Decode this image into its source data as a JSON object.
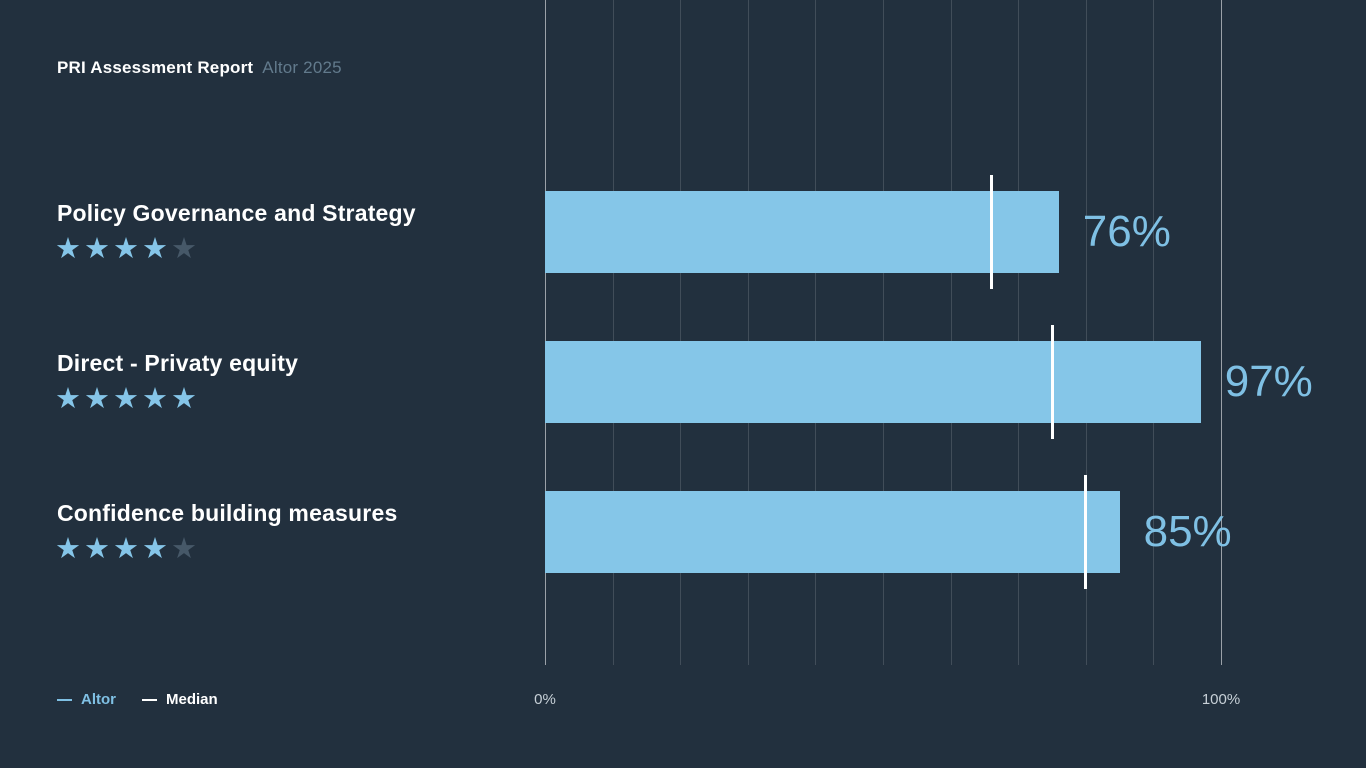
{
  "header": {
    "title": "PRI Assessment Report",
    "subtitle": "Altor 2025"
  },
  "chart_data": {
    "type": "bar",
    "orientation": "horizontal",
    "title": "PRI Assessment Report",
    "subtitle": "Altor 2025",
    "categories": [
      "Policy Governance and Strategy",
      "Direct - Privaty equity",
      "Confidence building measures"
    ],
    "star_ratings": [
      4,
      5,
      4
    ],
    "star_max": 5,
    "series": [
      {
        "name": "Altor",
        "type": "bar",
        "values": [
          76,
          97,
          85
        ]
      },
      {
        "name": "Median",
        "type": "tick-marker",
        "values": [
          66,
          75,
          80
        ]
      }
    ],
    "value_labels": [
      "76%",
      "97%",
      "85%"
    ],
    "xlim": [
      0,
      100
    ],
    "x_tick_labels": [
      "0%",
      "100%"
    ],
    "gridline_values": [
      0,
      10,
      20,
      30,
      40,
      50,
      60,
      70,
      80,
      90,
      100
    ],
    "grid": true,
    "legend_position": "bottom-left"
  },
  "legend": {
    "altor_label": "Altor",
    "median_label": "Median"
  },
  "colors": {
    "background": "#22303E",
    "bar": "#85C6E8",
    "value_label": "#7FC0E4",
    "median_tick": "#FFFFFF",
    "star_filled": "#85C5E8",
    "star_empty": "#465868",
    "subtitle_text": "#627A8C",
    "axis_label": "#C7D0D7",
    "gridline": "rgba(255,255,255,0.14)",
    "gridline_edge": "rgba(255,255,255,0.55)"
  }
}
